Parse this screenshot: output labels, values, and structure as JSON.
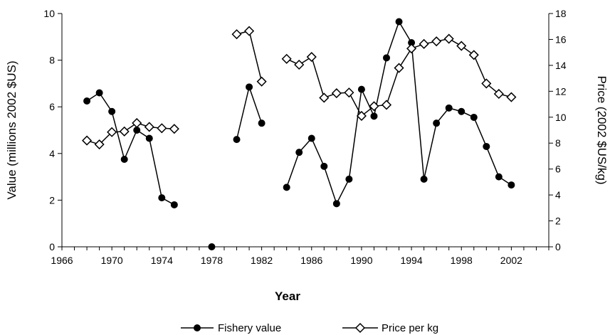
{
  "chart_data": {
    "type": "line",
    "xlabel": "Year",
    "ylabel": "Value (millions 2002 $US)",
    "y2label": "Price (2002 $US/kg)",
    "xlim": [
      1966,
      2005
    ],
    "ylim": [
      0,
      10
    ],
    "y2lim": [
      0,
      18
    ],
    "x_ticks": [
      1966,
      1970,
      1974,
      1978,
      1982,
      1986,
      1990,
      1994,
      1998,
      2002
    ],
    "y_ticks": [
      0,
      2,
      4,
      6,
      8,
      10
    ],
    "y2_ticks": [
      0,
      2,
      4,
      6,
      8,
      10,
      12,
      14,
      16,
      18
    ],
    "grid": false,
    "legend_position": "bottom-center",
    "series": [
      {
        "name": "Fishery value",
        "axis": "left",
        "marker": "filled-circle",
        "color": "#000000",
        "points": [
          [
            1968,
            6.25
          ],
          [
            1969,
            6.6
          ],
          [
            1970,
            5.8
          ],
          [
            1971,
            3.75
          ],
          [
            1972,
            5.0
          ],
          [
            1973,
            4.65
          ],
          [
            1974,
            2.1
          ],
          [
            1975,
            1.8
          ],
          [
            1978,
            0.0
          ],
          [
            1980,
            4.6
          ],
          [
            1981,
            6.85
          ],
          [
            1982,
            5.3
          ],
          [
            1984,
            2.55
          ],
          [
            1985,
            4.05
          ],
          [
            1986,
            4.65
          ],
          [
            1987,
            3.45
          ],
          [
            1988,
            1.85
          ],
          [
            1989,
            2.9
          ],
          [
            1990,
            6.75
          ],
          [
            1991,
            5.6
          ],
          [
            1992,
            8.1
          ],
          [
            1993,
            9.65
          ],
          [
            1994,
            8.75
          ],
          [
            1995,
            2.9
          ],
          [
            1996,
            5.3
          ],
          [
            1997,
            5.95
          ],
          [
            1998,
            5.8
          ],
          [
            1999,
            5.55
          ],
          [
            2000,
            4.3
          ],
          [
            2001,
            3.0
          ],
          [
            2002,
            2.65
          ]
        ]
      },
      {
        "name": "Price per kg",
        "axis": "right",
        "marker": "open-diamond",
        "color": "#000000",
        "points": [
          [
            1968,
            8.2
          ],
          [
            1969,
            7.9
          ],
          [
            1970,
            8.85
          ],
          [
            1971,
            8.9
          ],
          [
            1972,
            9.55
          ],
          [
            1973,
            9.25
          ],
          [
            1974,
            9.15
          ],
          [
            1975,
            9.1
          ],
          [
            1980,
            16.4
          ],
          [
            1981,
            16.65
          ],
          [
            1982,
            12.75
          ],
          [
            1984,
            14.5
          ],
          [
            1985,
            14.05
          ],
          [
            1986,
            14.65
          ],
          [
            1987,
            11.5
          ],
          [
            1988,
            11.85
          ],
          [
            1989,
            11.9
          ],
          [
            1990,
            10.1
          ],
          [
            1991,
            10.85
          ],
          [
            1992,
            10.95
          ],
          [
            1993,
            13.8
          ],
          [
            1994,
            15.3
          ],
          [
            1995,
            15.65
          ],
          [
            1996,
            15.85
          ],
          [
            1997,
            16.05
          ],
          [
            1998,
            15.5
          ],
          [
            1999,
            14.8
          ],
          [
            2000,
            12.6
          ],
          [
            2001,
            11.8
          ],
          [
            2002,
            11.55
          ]
        ]
      }
    ]
  }
}
